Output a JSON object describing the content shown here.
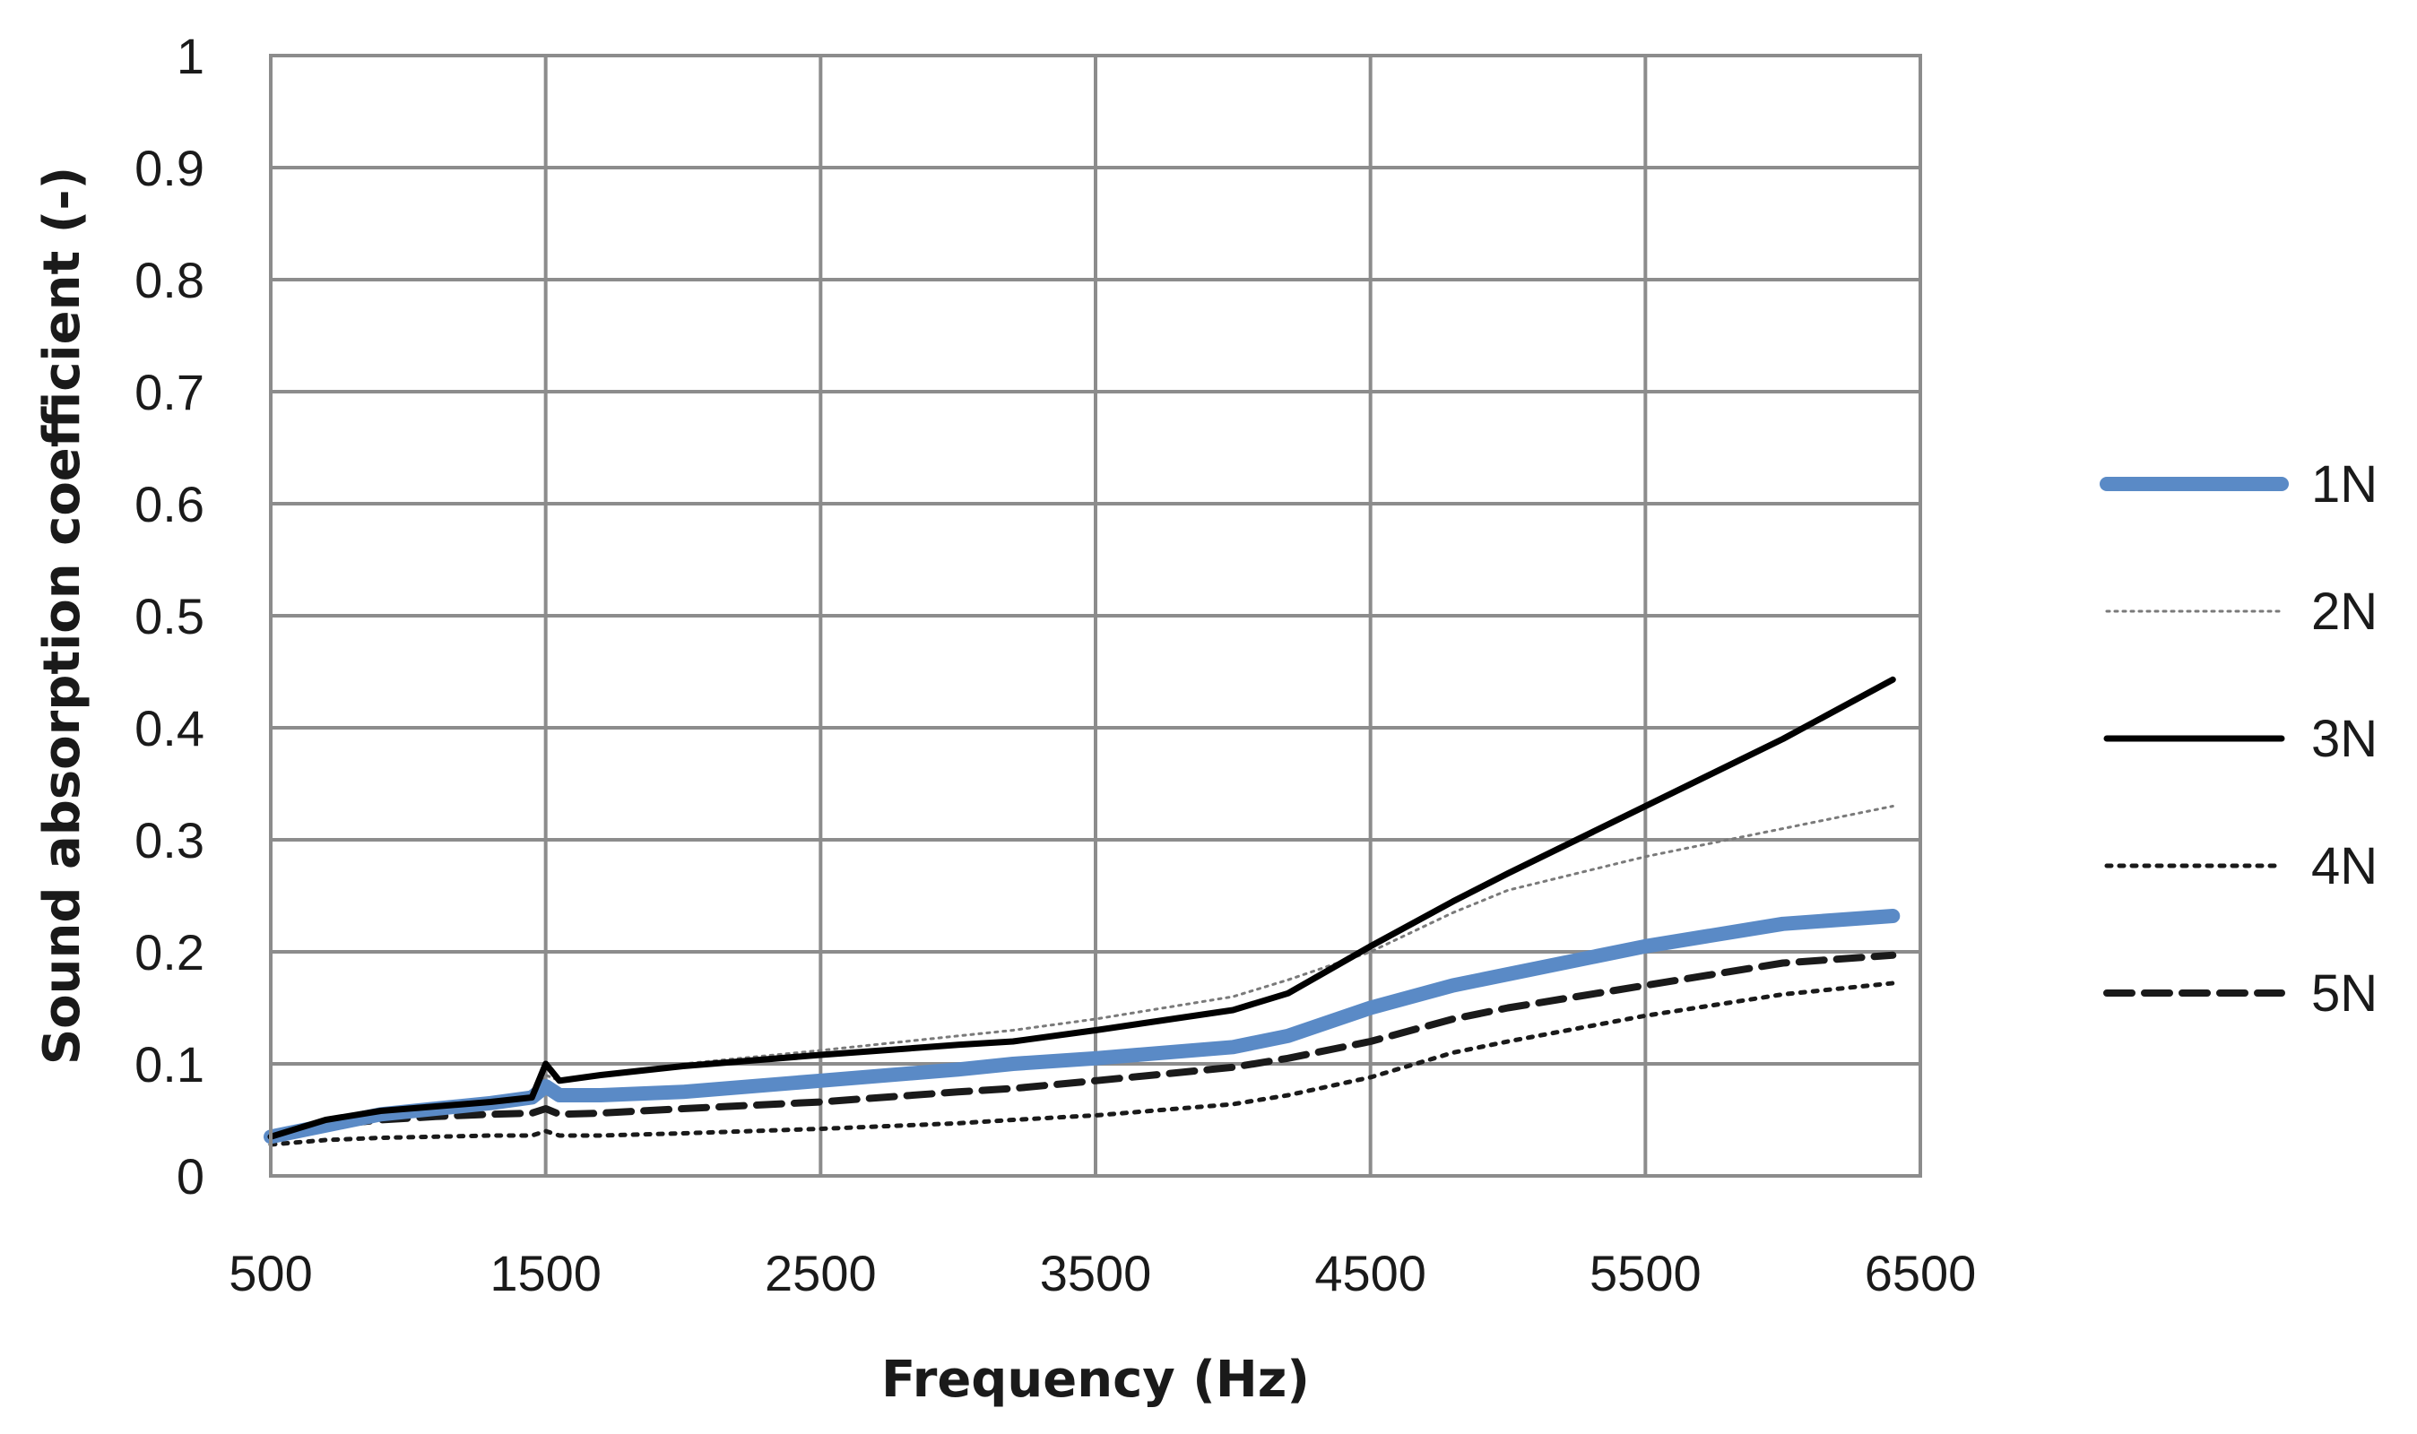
{
  "chart_data": {
    "type": "line",
    "title": "",
    "xlabel": "Frequency (Hz)",
    "ylabel": "Sound absorption coefficient  (-)",
    "xlim": [
      500,
      6500
    ],
    "ylim": [
      0,
      1
    ],
    "xticks": [
      500,
      1500,
      2500,
      3500,
      4500,
      5500,
      6500
    ],
    "yticks": [
      0,
      0.1,
      0.2,
      0.3,
      0.4,
      0.5,
      0.6,
      0.7,
      0.8,
      0.9,
      1
    ],
    "ytick_labels": [
      "0",
      "0.1",
      "0.2",
      "0.3",
      "0.4",
      "0.5",
      "0.6",
      "0.7",
      "0.8",
      "0.9",
      "1"
    ],
    "grid": true,
    "legend_position": "right",
    "x": [
      500,
      700,
      900,
      1100,
      1300,
      1450,
      1500,
      1550,
      1700,
      2000,
      2500,
      3000,
      3200,
      3500,
      4000,
      4200,
      4500,
      4800,
      5000,
      5500,
      6000,
      6400
    ],
    "series": [
      {
        "name": "1N",
        "color": "#5a8ac6",
        "style": "thick-solid",
        "values": [
          0.035,
          0.045,
          0.055,
          0.06,
          0.065,
          0.07,
          0.08,
          0.072,
          0.072,
          0.075,
          0.085,
          0.095,
          0.1,
          0.105,
          0.115,
          0.125,
          0.15,
          0.17,
          0.18,
          0.205,
          0.225,
          0.232
        ]
      },
      {
        "name": "2N",
        "color": "#7a7a7a",
        "style": "fine-dotted",
        "values": [
          0.035,
          0.047,
          0.055,
          0.062,
          0.068,
          0.072,
          0.09,
          0.085,
          0.09,
          0.1,
          0.112,
          0.125,
          0.13,
          0.14,
          0.16,
          0.175,
          0.2,
          0.235,
          0.255,
          0.285,
          0.31,
          0.33
        ]
      },
      {
        "name": "3N",
        "color": "#000000",
        "style": "solid",
        "values": [
          0.035,
          0.05,
          0.058,
          0.062,
          0.066,
          0.07,
          0.1,
          0.085,
          0.09,
          0.098,
          0.108,
          0.117,
          0.12,
          0.13,
          0.148,
          0.163,
          0.205,
          0.245,
          0.27,
          0.33,
          0.39,
          0.443
        ]
      },
      {
        "name": "4N",
        "color": "#1a1a1a",
        "style": "dotted",
        "values": [
          0.028,
          0.032,
          0.034,
          0.035,
          0.036,
          0.036,
          0.04,
          0.036,
          0.036,
          0.038,
          0.042,
          0.047,
          0.05,
          0.054,
          0.064,
          0.072,
          0.088,
          0.11,
          0.12,
          0.143,
          0.162,
          0.172
        ]
      },
      {
        "name": "5N",
        "color": "#1a1a1a",
        "style": "dashed",
        "values": [
          0.035,
          0.045,
          0.05,
          0.053,
          0.055,
          0.056,
          0.06,
          0.055,
          0.056,
          0.06,
          0.066,
          0.075,
          0.078,
          0.085,
          0.097,
          0.105,
          0.12,
          0.14,
          0.15,
          0.17,
          0.19,
          0.197
        ]
      }
    ]
  }
}
